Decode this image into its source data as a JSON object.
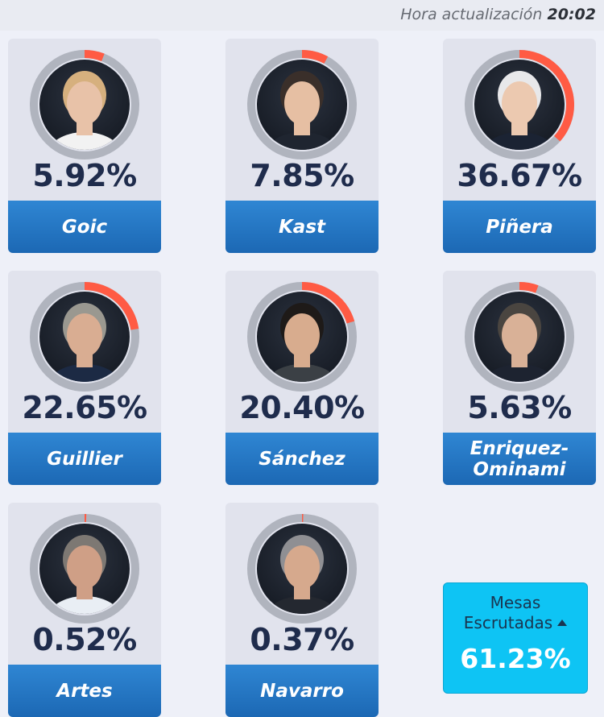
{
  "header": {
    "update_label": "Hora actualización",
    "update_time": "20:02"
  },
  "colors": {
    "accent": "#ff5b44",
    "ring_track": "#b0b4be",
    "name_bar": "#2279c4",
    "percent_text": "#1f2c4c",
    "mesas_bg": "#0ec4f4"
  },
  "candidates": [
    {
      "id": "goic",
      "name": "Goic",
      "percent": "5.92%",
      "share": 5.92
    },
    {
      "id": "kast",
      "name": "Kast",
      "percent": "7.85%",
      "share": 7.85
    },
    {
      "id": "pinera",
      "name": "Piñera",
      "percent": "36.67%",
      "share": 36.67
    },
    {
      "id": "guillier",
      "name": "Guillier",
      "percent": "22.65%",
      "share": 22.65
    },
    {
      "id": "sanchez",
      "name": "Sánchez",
      "percent": "20.40%",
      "share": 20.4
    },
    {
      "id": "enriquez",
      "name": "Enriquez-Ominami",
      "percent": "5.63%",
      "share": 5.63
    },
    {
      "id": "artes",
      "name": "Artes",
      "percent": "0.52%",
      "share": 0.52
    },
    {
      "id": "navarro",
      "name": "Navarro",
      "percent": "0.37%",
      "share": 0.37
    }
  ],
  "mesas": {
    "label_line1": "Mesas",
    "label_line2": "Escrutadas",
    "value": "61.23%",
    "icon": "caret-up-icon"
  }
}
